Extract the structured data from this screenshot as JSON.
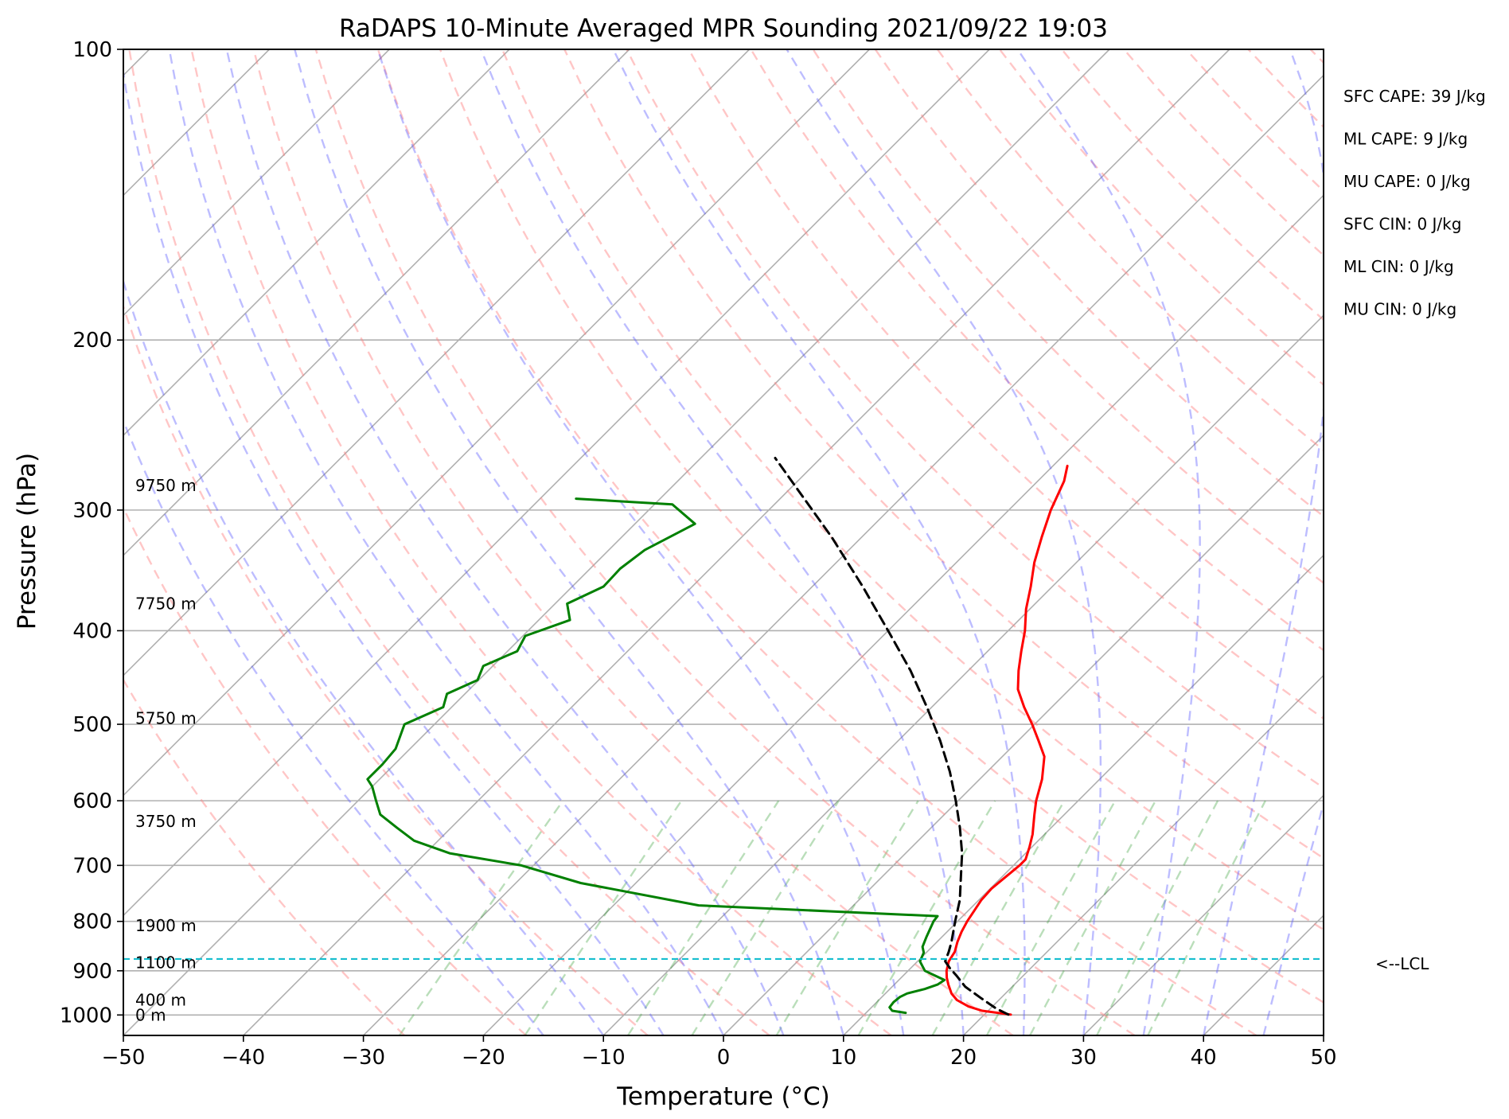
{
  "chart_data": {
    "type": "skew-t",
    "title": "RaDAPS 10-Minute Averaged MPR Sounding 2021/09/22 19:03",
    "xlabel": "Temperature (°C)",
    "ylabel": "Pressure (hPa)",
    "xlim": [
      -50,
      50
    ],
    "ylim": [
      1050,
      100
    ],
    "y_log_scale": true,
    "skew_degrees": 45,
    "grid": true,
    "x_ticks": [
      {
        "value": -50,
        "label": "−50"
      },
      {
        "value": -40,
        "label": "−40"
      },
      {
        "value": -30,
        "label": "−30"
      },
      {
        "value": -20,
        "label": "−20"
      },
      {
        "value": -10,
        "label": "−10"
      },
      {
        "value": 0,
        "label": "0"
      },
      {
        "value": 10,
        "label": "10"
      },
      {
        "value": 20,
        "label": "20"
      },
      {
        "value": 30,
        "label": "30"
      },
      {
        "value": 40,
        "label": "40"
      },
      {
        "value": 50,
        "label": "50"
      }
    ],
    "y_ticks": [
      {
        "value": 100,
        "label": "100"
      },
      {
        "value": 200,
        "label": "200"
      },
      {
        "value": 300,
        "label": "300"
      },
      {
        "value": 400,
        "label": "400"
      },
      {
        "value": 500,
        "label": "500"
      },
      {
        "value": 600,
        "label": "600"
      },
      {
        "value": 700,
        "label": "700"
      },
      {
        "value": 800,
        "label": "800"
      },
      {
        "value": 900,
        "label": "900"
      },
      {
        "value": 1000,
        "label": "1000"
      }
    ],
    "height_labels": [
      {
        "pressure": 1000,
        "label": "0 m"
      },
      {
        "pressure": 965,
        "label": "400 m"
      },
      {
        "pressure": 883,
        "label": "1100 m"
      },
      {
        "pressure": 808,
        "label": "1900 m"
      },
      {
        "pressure": 630,
        "label": "3750 m"
      },
      {
        "pressure": 493,
        "label": "5750 m"
      },
      {
        "pressure": 375,
        "label": "7750 m"
      },
      {
        "pressure": 283,
        "label": "9750 m"
      }
    ],
    "series": [
      {
        "role": "temperature",
        "color": "#ff0000",
        "points": [
          [
            999,
            22.2
          ],
          [
            990,
            19.5
          ],
          [
            980,
            18.0
          ],
          [
            965,
            16.5
          ],
          [
            950,
            15.5
          ],
          [
            930,
            14.5
          ],
          [
            915,
            13.8
          ],
          [
            900,
            13.2
          ],
          [
            880,
            12.6
          ],
          [
            860,
            12.3
          ],
          [
            840,
            11.7
          ],
          [
            820,
            11.2
          ],
          [
            800,
            10.8
          ],
          [
            780,
            10.5
          ],
          [
            760,
            10.2
          ],
          [
            740,
            10.1
          ],
          [
            720,
            10.3
          ],
          [
            700,
            10.5
          ],
          [
            690,
            10.5
          ],
          [
            670,
            9.8
          ],
          [
            650,
            9.0
          ],
          [
            620,
            7.5
          ],
          [
            600,
            6.5
          ],
          [
            570,
            5.2
          ],
          [
            540,
            3.5
          ],
          [
            520,
            1.7
          ],
          [
            500,
            -0.2
          ],
          [
            480,
            -2.3
          ],
          [
            460,
            -4.3
          ],
          [
            440,
            -5.8
          ],
          [
            420,
            -7.2
          ],
          [
            400,
            -8.6
          ],
          [
            380,
            -10.3
          ],
          [
            360,
            -11.8
          ],
          [
            340,
            -13.5
          ],
          [
            320,
            -15.0
          ],
          [
            300,
            -16.5
          ],
          [
            280,
            -17.8
          ],
          [
            270,
            -18.8
          ]
        ]
      },
      {
        "role": "dewpoint",
        "color": "#008000",
        "points": [
          [
            995,
            13.3
          ],
          [
            990,
            12.0
          ],
          [
            982,
            11.5
          ],
          [
            970,
            11.4
          ],
          [
            958,
            11.5
          ],
          [
            950,
            11.8
          ],
          [
            940,
            12.9
          ],
          [
            930,
            13.6
          ],
          [
            920,
            13.8
          ],
          [
            910,
            12.6
          ],
          [
            900,
            11.4
          ],
          [
            880,
            10.2
          ],
          [
            862,
            9.8
          ],
          [
            850,
            9.2
          ],
          [
            830,
            8.7
          ],
          [
            800,
            8.0
          ],
          [
            790,
            7.9
          ],
          [
            770,
            -12.9
          ],
          [
            730,
            -24.6
          ],
          [
            700,
            -31.0
          ],
          [
            680,
            -38.0
          ],
          [
            660,
            -42.0
          ],
          [
            640,
            -44.5
          ],
          [
            620,
            -47.0
          ],
          [
            600,
            -48.5
          ],
          [
            580,
            -50.0
          ],
          [
            570,
            -51.0
          ],
          [
            550,
            -51.0
          ],
          [
            530,
            -51.2
          ],
          [
            500,
            -52.5
          ],
          [
            480,
            -50.7
          ],
          [
            465,
            -51.5
          ],
          [
            450,
            -50.1
          ],
          [
            435,
            -50.8
          ],
          [
            420,
            -49.2
          ],
          [
            405,
            -49.8
          ],
          [
            390,
            -47.4
          ],
          [
            375,
            -49.0
          ],
          [
            360,
            -47.4
          ],
          [
            345,
            -47.5
          ],
          [
            330,
            -47.0
          ],
          [
            310,
            -45.0
          ],
          [
            296,
            -48.5
          ],
          [
            292,
            -57.0
          ]
        ]
      },
      {
        "role": "parcel",
        "color": "#000000",
        "dashed": true,
        "points": [
          [
            999,
            22.0
          ],
          [
            985,
            20.5
          ],
          [
            960,
            18.3
          ],
          [
            935,
            16.1
          ],
          [
            910,
            14.4
          ],
          [
            895,
            13.3
          ],
          [
            880,
            12.3
          ],
          [
            860,
            11.8
          ],
          [
            840,
            11.2
          ],
          [
            800,
            9.8
          ],
          [
            760,
            8.4
          ],
          [
            720,
            6.6
          ],
          [
            680,
            4.7
          ],
          [
            640,
            2.4
          ],
          [
            600,
            -0.2
          ],
          [
            560,
            -3.1
          ],
          [
            520,
            -6.5
          ],
          [
            480,
            -10.4
          ],
          [
            440,
            -14.8
          ],
          [
            400,
            -20.0
          ],
          [
            360,
            -25.8
          ],
          [
            320,
            -32.5
          ],
          [
            280,
            -40.5
          ],
          [
            265,
            -43.8
          ]
        ]
      }
    ],
    "background_lines": {
      "dry_adiabats": "pink dashed",
      "moist_adiabats": "blue dashed",
      "mixing_ratio": "green dashed",
      "isotherms": "gray solid (skewed)"
    },
    "lcl": {
      "pressure": 875,
      "label": "<--LCL",
      "color": "#17becf"
    },
    "stats": [
      "SFC CAPE: 39 J/kg",
      "ML CAPE: 9 J/kg",
      "MU CAPE: 0 J/kg",
      "SFC CIN: 0 J/kg",
      "ML CIN: 0 J/kg",
      "MU CIN: 0 J/kg"
    ]
  }
}
